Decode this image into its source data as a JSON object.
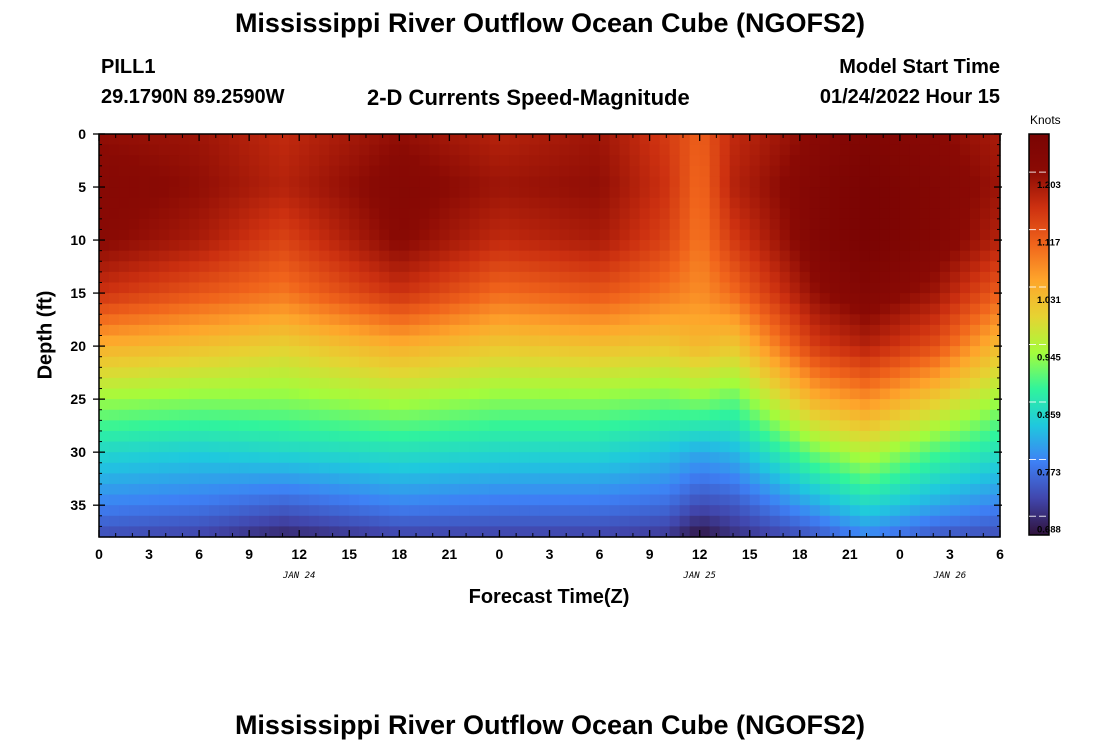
{
  "page": {
    "title": "Mississippi River Outflow Ocean Cube (NGOFS2)",
    "station_id": "PILL1",
    "coords": "29.1790N  89.2590W",
    "subtitle": "2-D Currents Speed-Magnitude",
    "model_start_label": "Model Start Time",
    "model_start_value": "01/24/2022 Hour 15",
    "bottom_title": "Mississippi River Outflow Ocean Cube (NGOFS2)"
  },
  "chart_data": {
    "type": "heatmap",
    "title": "2-D Currents Speed-Magnitude",
    "xlabel": "Forecast Time(Z)",
    "ylabel": "Depth (ft)",
    "colorbar_label": "Knots",
    "x_tick_labels": [
      "0",
      "3",
      "6",
      "9",
      "12",
      "15",
      "18",
      "21",
      "0",
      "3",
      "6",
      "9",
      "12",
      "15",
      "18",
      "21",
      "0",
      "3",
      "6"
    ],
    "x_date_labels": [
      {
        "label": "JAN 24",
        "hour": 12
      },
      {
        "label": "JAN 25",
        "hour": 36
      },
      {
        "label": "JAN 26",
        "hour": 51
      }
    ],
    "x_range_hours": [
      0,
      54
    ],
    "y_ticks": [
      0,
      5,
      10,
      15,
      20,
      25,
      30,
      35
    ],
    "y_range": [
      0,
      38
    ],
    "y_inverted": true,
    "color_range": [
      0.66,
      1.26
    ],
    "colorbar_ticks": [
      "1.203",
      "1.117",
      "1.031",
      "0.945",
      "0.859",
      "0.773",
      "0.688"
    ],
    "colorbar_tick_values": [
      1.203,
      1.117,
      1.031,
      0.945,
      0.859,
      0.773,
      0.688
    ],
    "colormap": [
      "#30123b",
      "#4146ac",
      "#3e80f5",
      "#1fc8de",
      "#30f49c",
      "#a4fc3b",
      "#e6d332",
      "#fea52b",
      "#f0631b",
      "#cc3010",
      "#8a0a04",
      "#7a0403"
    ],
    "grid": false,
    "depth_profile_levels": [
      0,
      5,
      10,
      15,
      20,
      25,
      30,
      35,
      38
    ],
    "series": [
      {
        "time_hr": 0,
        "speed": [
          1.2,
          1.22,
          1.21,
          1.15,
          1.03,
          0.93,
          0.84,
          0.77,
          0.72
        ]
      },
      {
        "time_hr": 6,
        "speed": [
          1.19,
          1.2,
          1.18,
          1.11,
          1.01,
          0.92,
          0.83,
          0.76,
          0.71
        ]
      },
      {
        "time_hr": 11,
        "speed": [
          1.16,
          1.17,
          1.13,
          1.08,
          0.99,
          0.92,
          0.84,
          0.74,
          0.68
        ]
      },
      {
        "time_hr": 18,
        "speed": [
          1.2,
          1.22,
          1.21,
          1.15,
          1.03,
          0.94,
          0.85,
          0.77,
          0.71
        ]
      },
      {
        "time_hr": 24,
        "speed": [
          1.17,
          1.19,
          1.16,
          1.09,
          1.0,
          0.92,
          0.84,
          0.76,
          0.71
        ]
      },
      {
        "time_hr": 30,
        "speed": [
          1.19,
          1.2,
          1.18,
          1.11,
          1.01,
          0.92,
          0.84,
          0.76,
          0.71
        ]
      },
      {
        "time_hr": 34,
        "speed": [
          1.14,
          1.15,
          1.13,
          1.08,
          1.0,
          0.91,
          0.82,
          0.75,
          0.7
        ]
      },
      {
        "time_hr": 36,
        "speed": [
          1.1,
          1.09,
          1.08,
          1.06,
          1.02,
          0.92,
          0.8,
          0.72,
          0.66
        ]
      },
      {
        "time_hr": 38,
        "speed": [
          1.16,
          1.17,
          1.14,
          1.09,
          1.0,
          0.9,
          0.81,
          0.73,
          0.69
        ]
      },
      {
        "time_hr": 43,
        "speed": [
          1.21,
          1.23,
          1.23,
          1.2,
          1.14,
          1.03,
          0.91,
          0.8,
          0.73
        ]
      },
      {
        "time_hr": 46,
        "speed": [
          1.24,
          1.26,
          1.26,
          1.23,
          1.17,
          1.06,
          0.95,
          0.84,
          0.77
        ]
      },
      {
        "time_hr": 50,
        "speed": [
          1.21,
          1.23,
          1.23,
          1.19,
          1.12,
          1.0,
          0.89,
          0.8,
          0.73
        ]
      },
      {
        "time_hr": 54,
        "speed": [
          1.18,
          1.19,
          1.17,
          1.1,
          1.01,
          0.93,
          0.85,
          0.77,
          0.72
        ]
      }
    ]
  }
}
